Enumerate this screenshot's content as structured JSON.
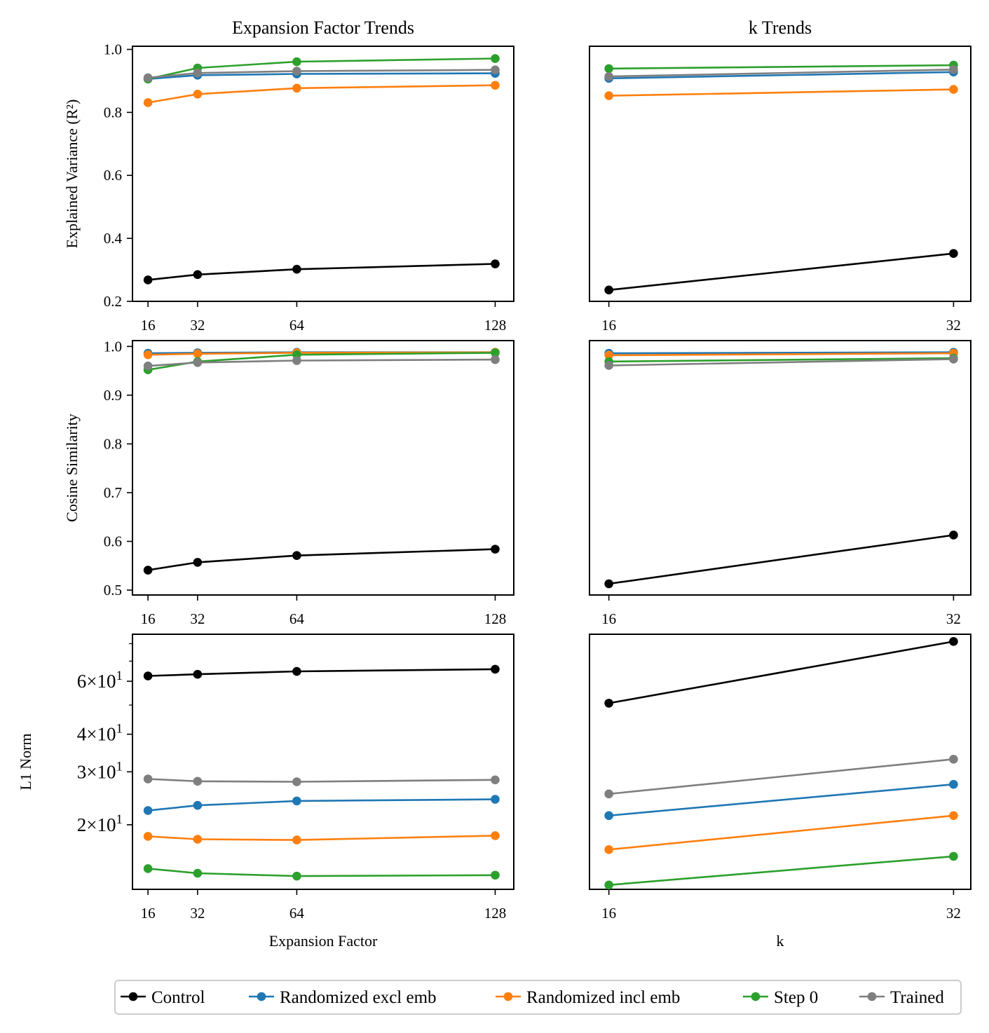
{
  "colors": {
    "Control": "#000000",
    "Randomized excl emb": "#1f77b4",
    "Randomized incl emb": "#ff7f0e",
    "Step 0": "#2ca02c",
    "Trained": "#7f7f7f"
  },
  "legend": [
    "Control",
    "Randomized excl emb",
    "Randomized incl emb",
    "Step 0",
    "Trained"
  ],
  "chart_data": [
    {
      "id": "r2-expansion",
      "type": "line",
      "title": "Expansion Factor Trends",
      "xlabel": "",
      "ylabel": "Explained Variance (R²)",
      "x": [
        16,
        32,
        64,
        128
      ],
      "xticks": [
        "16",
        "32",
        "64",
        "128"
      ],
      "xlim": [
        11,
        134
      ],
      "ylim": [
        0.2,
        1.01
      ],
      "yticks": [
        "0.2",
        "0.4",
        "0.6",
        "0.8",
        "1.0"
      ],
      "yscale": "linear",
      "series": [
        {
          "name": "Control",
          "values": [
            0.268,
            0.285,
            0.302,
            0.319
          ]
        },
        {
          "name": "Randomized excl emb",
          "values": [
            0.906,
            0.918,
            0.922,
            0.924
          ]
        },
        {
          "name": "Randomized incl emb",
          "values": [
            0.831,
            0.858,
            0.877,
            0.886
          ]
        },
        {
          "name": "Step 0",
          "values": [
            0.906,
            0.941,
            0.961,
            0.971
          ]
        },
        {
          "name": "Trained",
          "values": [
            0.91,
            0.925,
            0.931,
            0.935
          ]
        }
      ]
    },
    {
      "id": "r2-k",
      "type": "line",
      "title": "k Trends",
      "xlabel": "",
      "ylabel": "",
      "x": [
        16,
        32
      ],
      "xticks": [
        "16",
        "32"
      ],
      "xlim": [
        15.1,
        32.8
      ],
      "ylim": [
        0.2,
        1.01
      ],
      "yticks": [],
      "yscale": "linear",
      "series": [
        {
          "name": "Control",
          "values": [
            0.236,
            0.352
          ]
        },
        {
          "name": "Randomized excl emb",
          "values": [
            0.908,
            0.928
          ]
        },
        {
          "name": "Randomized incl emb",
          "values": [
            0.853,
            0.873
          ]
        },
        {
          "name": "Step 0",
          "values": [
            0.939,
            0.95
          ]
        },
        {
          "name": "Trained",
          "values": [
            0.914,
            0.936
          ]
        }
      ]
    },
    {
      "id": "cos-expansion",
      "type": "line",
      "title": "",
      "xlabel": "",
      "ylabel": "Cosine Similarity",
      "x": [
        16,
        32,
        64,
        128
      ],
      "xticks": [
        "16",
        "32",
        "64",
        "128"
      ],
      "xlim": [
        11,
        134
      ],
      "ylim": [
        0.49,
        1.012
      ],
      "yticks": [
        "0.5",
        "0.6",
        "0.7",
        "0.8",
        "0.9",
        "1.0"
      ],
      "yscale": "linear",
      "series": [
        {
          "name": "Control",
          "values": [
            0.541,
            0.557,
            0.571,
            0.584
          ]
        },
        {
          "name": "Randomized excl emb",
          "values": [
            0.986,
            0.987,
            0.988,
            0.988
          ]
        },
        {
          "name": "Randomized incl emb",
          "values": [
            0.983,
            0.985,
            0.987,
            0.988
          ]
        },
        {
          "name": "Step 0",
          "values": [
            0.952,
            0.969,
            0.983,
            0.987
          ]
        },
        {
          "name": "Trained",
          "values": [
            0.96,
            0.967,
            0.971,
            0.973
          ]
        }
      ]
    },
    {
      "id": "cos-k",
      "type": "line",
      "title": "",
      "xlabel": "",
      "ylabel": "",
      "x": [
        16,
        32
      ],
      "xticks": [
        "16",
        "32"
      ],
      "xlim": [
        15.1,
        32.8
      ],
      "ylim": [
        0.49,
        1.012
      ],
      "yticks": [],
      "yscale": "linear",
      "series": [
        {
          "name": "Control",
          "values": [
            0.513,
            0.613
          ]
        },
        {
          "name": "Randomized excl emb",
          "values": [
            0.986,
            0.988
          ]
        },
        {
          "name": "Randomized incl emb",
          "values": [
            0.982,
            0.986
          ]
        },
        {
          "name": "Step 0",
          "values": [
            0.969,
            0.976
          ]
        },
        {
          "name": "Trained",
          "values": [
            0.961,
            0.974
          ]
        }
      ]
    },
    {
      "id": "l1-expansion",
      "type": "line",
      "title": "",
      "xlabel": "Expansion Factor",
      "ylabel": "L1 Norm",
      "x": [
        16,
        32,
        64,
        128
      ],
      "xticks": [
        "16",
        "32",
        "64",
        "128"
      ],
      "xlim": [
        11,
        134
      ],
      "ylim": [
        12.2,
        86
      ],
      "yscale": "log",
      "ytick_values": [
        20,
        30,
        40,
        60
      ],
      "ytick_mantissa": [
        "2",
        "3",
        "4",
        "6"
      ],
      "minor_ytick_values": [
        50,
        70,
        80
      ],
      "series": [
        {
          "name": "Control",
          "values": [
            62.5,
            63.3,
            64.7,
            65.8
          ]
        },
        {
          "name": "Randomized excl emb",
          "values": [
            22.3,
            23.2,
            24.0,
            24.3
          ]
        },
        {
          "name": "Randomized incl emb",
          "values": [
            18.3,
            17.9,
            17.8,
            18.4
          ]
        },
        {
          "name": "Step 0",
          "values": [
            14.3,
            13.8,
            13.5,
            13.6
          ]
        },
        {
          "name": "Trained",
          "values": [
            28.4,
            27.9,
            27.8,
            28.2
          ]
        }
      ]
    },
    {
      "id": "l1-k",
      "type": "line",
      "title": "",
      "xlabel": "k",
      "ylabel": "",
      "x": [
        16,
        32
      ],
      "xticks": [
        "16",
        "32"
      ],
      "xlim": [
        15.1,
        32.8
      ],
      "ylim": [
        11.5,
        85
      ],
      "yscale": "log",
      "ytick_values": [],
      "ytick_mantissa": [],
      "minor_ytick_values": [],
      "series": [
        {
          "name": "Control",
          "values": [
            49.5,
            80.3
          ]
        },
        {
          "name": "Randomized excl emb",
          "values": [
            20.5,
            26.2
          ]
        },
        {
          "name": "Randomized incl emb",
          "values": [
            15.7,
            20.5
          ]
        },
        {
          "name": "Step 0",
          "values": [
            11.9,
            14.9
          ]
        },
        {
          "name": "Trained",
          "values": [
            24.3,
            31.9
          ]
        }
      ]
    }
  ]
}
